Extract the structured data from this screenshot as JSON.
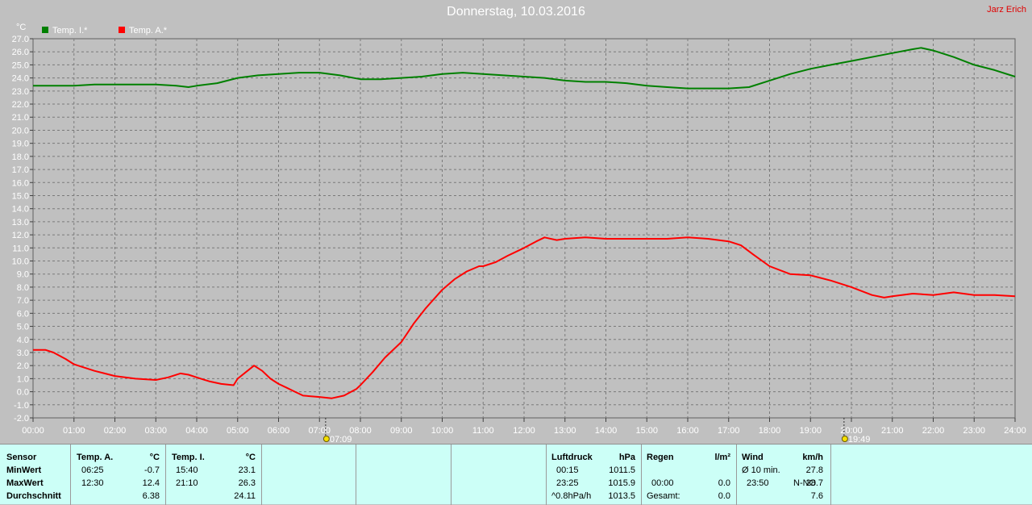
{
  "title": "Donnerstag, 10.03.2016",
  "author": "Jarz Erich",
  "colors": {
    "background": "#c0c0c0",
    "plot": "#c0c0c0",
    "temp_inside": "#008000",
    "temp_outside": "#ff0000",
    "panel": "#ccfff7"
  },
  "chart_data": {
    "type": "line",
    "ylabel": "°C",
    "ylim": [
      -2.0,
      27.0
    ],
    "xlim": [
      0,
      24
    ],
    "grid": true,
    "legend_position": "top-left",
    "x_ticks": [
      "00:00",
      "01:00",
      "02:00",
      "03:00",
      "04:00",
      "05:00",
      "06:00",
      "07:00",
      "08:00",
      "09:00",
      "10:00",
      "11:00",
      "12:00",
      "13:00",
      "14:00",
      "15:00",
      "16:00",
      "17:00",
      "18:00",
      "19:00",
      "20:00",
      "21:00",
      "22:00",
      "23:00",
      "24:00"
    ],
    "y_ticks": [
      "-2.0",
      "-1.0",
      "0.0",
      "1.0",
      "2.0",
      "3.0",
      "4.0",
      "5.0",
      "6.0",
      "7.0",
      "8.0",
      "9.0",
      "10.0",
      "11.0",
      "12.0",
      "13.0",
      "14.0",
      "15.0",
      "16.0",
      "17.0",
      "18.0",
      "19.0",
      "20.0",
      "21.0",
      "22.0",
      "23.0",
      "24.0",
      "25.0",
      "26.0",
      "27.0"
    ],
    "annotations": [
      {
        "label": "07:09",
        "x": 7.15,
        "icon": "sunrise-icon"
      },
      {
        "label": "19:49",
        "x": 19.82,
        "icon": "sunset-icon"
      }
    ],
    "series": [
      {
        "name": "Temp. I.*",
        "color": "#008000",
        "x": [
          0,
          0.5,
          1,
          1.5,
          2,
          2.5,
          3,
          3.5,
          3.8,
          4,
          4.5,
          5,
          5.5,
          6,
          6.5,
          7,
          7.5,
          8,
          8.5,
          9,
          9.5,
          10,
          10.5,
          11,
          11.5,
          12,
          12.5,
          13,
          13.5,
          14,
          14.5,
          15,
          15.5,
          16,
          16.5,
          17,
          17.5,
          18,
          18.5,
          19,
          19.5,
          20,
          20.5,
          21,
          21.5,
          21.7,
          22,
          22.5,
          23,
          23.5,
          24
        ],
        "y": [
          23.4,
          23.4,
          23.4,
          23.5,
          23.5,
          23.5,
          23.5,
          23.4,
          23.3,
          23.4,
          23.6,
          24.0,
          24.2,
          24.3,
          24.4,
          24.4,
          24.2,
          23.9,
          23.9,
          24.0,
          24.1,
          24.3,
          24.4,
          24.3,
          24.2,
          24.1,
          24.0,
          23.8,
          23.7,
          23.7,
          23.6,
          23.4,
          23.3,
          23.2,
          23.2,
          23.2,
          23.3,
          23.8,
          24.3,
          24.7,
          25.0,
          25.3,
          25.6,
          25.9,
          26.2,
          26.3,
          26.1,
          25.6,
          25.0,
          24.6,
          24.1
        ]
      },
      {
        "name": "Temp. A.*",
        "color": "#ff0000",
        "x": [
          0,
          0.3,
          0.5,
          0.8,
          1,
          1.5,
          2,
          2.5,
          3,
          3.3,
          3.6,
          3.8,
          4,
          4.3,
          4.6,
          4.9,
          5,
          5.2,
          5.4,
          5.6,
          5.8,
          6,
          6.2,
          6.4,
          6.6,
          7,
          7.3,
          7.6,
          7.9,
          8,
          8.3,
          8.6,
          9,
          9.3,
          9.6,
          10,
          10.3,
          10.6,
          10.9,
          11,
          11.3,
          11.6,
          12,
          12.3,
          12.5,
          12.8,
          13,
          13.5,
          14,
          14.5,
          15,
          15.5,
          16,
          16.5,
          17,
          17.3,
          17.6,
          18,
          18.5,
          19,
          19.5,
          20,
          20.5,
          20.8,
          21,
          21.5,
          22,
          22.5,
          23,
          23.5,
          24
        ],
        "y": [
          3.2,
          3.2,
          3.0,
          2.5,
          2.1,
          1.6,
          1.2,
          1.0,
          0.9,
          1.1,
          1.4,
          1.3,
          1.1,
          0.8,
          0.6,
          0.5,
          1.0,
          1.5,
          2.0,
          1.6,
          1.0,
          0.6,
          0.3,
          0.0,
          -0.3,
          -0.4,
          -0.5,
          -0.3,
          0.2,
          0.5,
          1.5,
          2.6,
          3.8,
          5.2,
          6.4,
          7.8,
          8.6,
          9.2,
          9.6,
          9.6,
          9.9,
          10.4,
          11.0,
          11.5,
          11.8,
          11.6,
          11.7,
          11.8,
          11.7,
          11.7,
          11.7,
          11.7,
          11.8,
          11.7,
          11.5,
          11.2,
          10.5,
          9.6,
          9.0,
          8.9,
          8.5,
          8.0,
          7.4,
          7.2,
          7.3,
          7.5,
          7.4,
          7.6,
          7.4,
          7.4,
          7.3
        ]
      }
    ]
  },
  "panel": {
    "sensor": {
      "header": "Sensor",
      "rows": [
        "MinWert",
        "MaxWert",
        "Durchschnitt"
      ]
    },
    "temp_a": {
      "header": "Temp. A.",
      "unit": "°C",
      "min_time": "06:25",
      "min_val": "-0.7",
      "max_time": "12:30",
      "max_val": "12.4",
      "avg": "6.38"
    },
    "temp_i": {
      "header": "Temp. I.",
      "unit": "°C",
      "min_time": "15:40",
      "min_val": "23.1",
      "max_time": "21:10",
      "max_val": "26.3",
      "avg": "24.11"
    },
    "luftdruck": {
      "header": "Luftdruck",
      "unit": "hPa",
      "min_time": "00:15",
      "min_val": "1011.5",
      "max_time": "23:25",
      "max_val": "1015.9",
      "trend_label": "^0.8hPa/h",
      "trend_val": "1013.5"
    },
    "regen": {
      "header": "Regen",
      "unit": "l/m²",
      "max_time": "00:00",
      "max_val": "0.0",
      "total_label": "Gesamt:",
      "total_val": "0.0"
    },
    "wind": {
      "header": "Wind",
      "unit": "km/h",
      "avg_label": "Ø 10 min.",
      "avg_val": "27.8",
      "max_time": "23:50",
      "max_dir": "N-NO",
      "max_val": "28.7",
      "avg_day": "7.6"
    }
  }
}
